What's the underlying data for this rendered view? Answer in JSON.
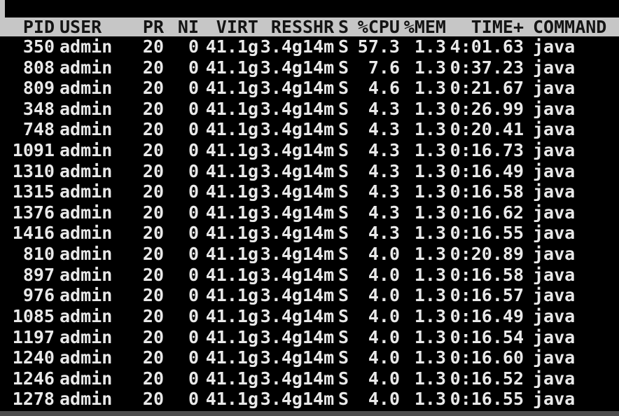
{
  "colors": {
    "header_bg": "#c6c6c6",
    "header_text": "#141414",
    "body_bg": "#000000",
    "row_text": "#e9e9e9",
    "bottom_strip": "#4d4d4d",
    "edge_strip": "#c6c6c6"
  },
  "table": {
    "columns": [
      {
        "key": "pid",
        "label": "PID",
        "align": "right"
      },
      {
        "key": "user",
        "label": "USER",
        "align": "left"
      },
      {
        "key": "pr",
        "label": "PR",
        "align": "right"
      },
      {
        "key": "ni",
        "label": "NI",
        "align": "right"
      },
      {
        "key": "virt",
        "label": "VIRT",
        "align": "right"
      },
      {
        "key": "res",
        "label": "RES",
        "align": "right"
      },
      {
        "key": "shr",
        "label": "SHR",
        "align": "right"
      },
      {
        "key": "s",
        "label": "S",
        "align": "right"
      },
      {
        "key": "cpu",
        "label": "%CPU",
        "align": "right"
      },
      {
        "key": "mem",
        "label": "%MEM",
        "align": "right"
      },
      {
        "key": "time",
        "label": "TIME+",
        "align": "right"
      },
      {
        "key": "command",
        "label": "COMMAND",
        "align": "left"
      }
    ],
    "rows": [
      {
        "pid": "350",
        "user": "admin",
        "pr": "20",
        "ni": "0",
        "virt": "41.1g",
        "res": "3.4g",
        "shr": "14m",
        "s": "S",
        "cpu": "57.3",
        "mem": "1.3",
        "time": "4:01.63",
        "command": "java"
      },
      {
        "pid": "808",
        "user": "admin",
        "pr": "20",
        "ni": "0",
        "virt": "41.1g",
        "res": "3.4g",
        "shr": "14m",
        "s": "S",
        "cpu": "7.6",
        "mem": "1.3",
        "time": "0:37.23",
        "command": "java"
      },
      {
        "pid": "809",
        "user": "admin",
        "pr": "20",
        "ni": "0",
        "virt": "41.1g",
        "res": "3.4g",
        "shr": "14m",
        "s": "S",
        "cpu": "4.6",
        "mem": "1.3",
        "time": "0:21.67",
        "command": "java"
      },
      {
        "pid": "348",
        "user": "admin",
        "pr": "20",
        "ni": "0",
        "virt": "41.1g",
        "res": "3.4g",
        "shr": "14m",
        "s": "S",
        "cpu": "4.3",
        "mem": "1.3",
        "time": "0:26.99",
        "command": "java"
      },
      {
        "pid": "748",
        "user": "admin",
        "pr": "20",
        "ni": "0",
        "virt": "41.1g",
        "res": "3.4g",
        "shr": "14m",
        "s": "S",
        "cpu": "4.3",
        "mem": "1.3",
        "time": "0:20.41",
        "command": "java"
      },
      {
        "pid": "1091",
        "user": "admin",
        "pr": "20",
        "ni": "0",
        "virt": "41.1g",
        "res": "3.4g",
        "shr": "14m",
        "s": "S",
        "cpu": "4.3",
        "mem": "1.3",
        "time": "0:16.73",
        "command": "java"
      },
      {
        "pid": "1310",
        "user": "admin",
        "pr": "20",
        "ni": "0",
        "virt": "41.1g",
        "res": "3.4g",
        "shr": "14m",
        "s": "S",
        "cpu": "4.3",
        "mem": "1.3",
        "time": "0:16.49",
        "command": "java"
      },
      {
        "pid": "1315",
        "user": "admin",
        "pr": "20",
        "ni": "0",
        "virt": "41.1g",
        "res": "3.4g",
        "shr": "14m",
        "s": "S",
        "cpu": "4.3",
        "mem": "1.3",
        "time": "0:16.58",
        "command": "java"
      },
      {
        "pid": "1376",
        "user": "admin",
        "pr": "20",
        "ni": "0",
        "virt": "41.1g",
        "res": "3.4g",
        "shr": "14m",
        "s": "S",
        "cpu": "4.3",
        "mem": "1.3",
        "time": "0:16.62",
        "command": "java"
      },
      {
        "pid": "1416",
        "user": "admin",
        "pr": "20",
        "ni": "0",
        "virt": "41.1g",
        "res": "3.4g",
        "shr": "14m",
        "s": "S",
        "cpu": "4.3",
        "mem": "1.3",
        "time": "0:16.55",
        "command": "java"
      },
      {
        "pid": "810",
        "user": "admin",
        "pr": "20",
        "ni": "0",
        "virt": "41.1g",
        "res": "3.4g",
        "shr": "14m",
        "s": "S",
        "cpu": "4.0",
        "mem": "1.3",
        "time": "0:20.89",
        "command": "java"
      },
      {
        "pid": "897",
        "user": "admin",
        "pr": "20",
        "ni": "0",
        "virt": "41.1g",
        "res": "3.4g",
        "shr": "14m",
        "s": "S",
        "cpu": "4.0",
        "mem": "1.3",
        "time": "0:16.58",
        "command": "java"
      },
      {
        "pid": "976",
        "user": "admin",
        "pr": "20",
        "ni": "0",
        "virt": "41.1g",
        "res": "3.4g",
        "shr": "14m",
        "s": "S",
        "cpu": "4.0",
        "mem": "1.3",
        "time": "0:16.57",
        "command": "java"
      },
      {
        "pid": "1085",
        "user": "admin",
        "pr": "20",
        "ni": "0",
        "virt": "41.1g",
        "res": "3.4g",
        "shr": "14m",
        "s": "S",
        "cpu": "4.0",
        "mem": "1.3",
        "time": "0:16.49",
        "command": "java"
      },
      {
        "pid": "1197",
        "user": "admin",
        "pr": "20",
        "ni": "0",
        "virt": "41.1g",
        "res": "3.4g",
        "shr": "14m",
        "s": "S",
        "cpu": "4.0",
        "mem": "1.3",
        "time": "0:16.54",
        "command": "java"
      },
      {
        "pid": "1240",
        "user": "admin",
        "pr": "20",
        "ni": "0",
        "virt": "41.1g",
        "res": "3.4g",
        "shr": "14m",
        "s": "S",
        "cpu": "4.0",
        "mem": "1.3",
        "time": "0:16.60",
        "command": "java"
      },
      {
        "pid": "1246",
        "user": "admin",
        "pr": "20",
        "ni": "0",
        "virt": "41.1g",
        "res": "3.4g",
        "shr": "14m",
        "s": "S",
        "cpu": "4.0",
        "mem": "1.3",
        "time": "0:16.52",
        "command": "java"
      },
      {
        "pid": "1278",
        "user": "admin",
        "pr": "20",
        "ni": "0",
        "virt": "41.1g",
        "res": "3.4g",
        "shr": "14m",
        "s": "S",
        "cpu": "4.0",
        "mem": "1.3",
        "time": "0:16.55",
        "command": "java"
      }
    ]
  }
}
